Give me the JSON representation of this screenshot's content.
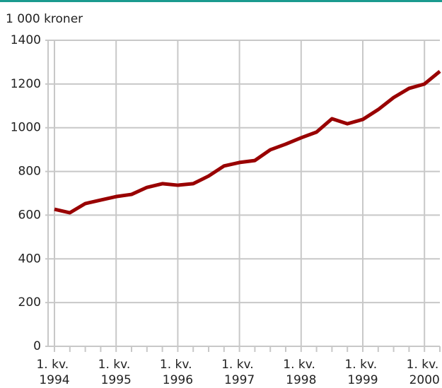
{
  "chart_data": {
    "type": "line",
    "y_label": "1 000 kroner",
    "categories": [
      "1. kv. 1994",
      null,
      null,
      null,
      "1. kv. 1995",
      null,
      null,
      null,
      "1. kv. 1996",
      null,
      null,
      null,
      "1. kv. 1997",
      null,
      null,
      null,
      "1. kv. 1998",
      null,
      null,
      null,
      "1. kv. 1999",
      null,
      null,
      null,
      "1. kv. 2000",
      null
    ],
    "series": [
      {
        "name": null,
        "color": "#990000",
        "values": [
          627,
          611,
          653,
          669,
          685,
          695,
          727,
          744,
          737,
          744,
          779,
          825,
          841,
          850,
          899,
          925,
          954,
          980,
          1041,
          1018,
          1038,
          1083,
          1138,
          1180,
          1200,
          1258
        ]
      }
    ],
    "ylim": [
      0,
      1400
    ],
    "yticks": [
      0,
      200,
      400,
      600,
      800,
      1000,
      1200,
      1400
    ],
    "grid": true
  }
}
